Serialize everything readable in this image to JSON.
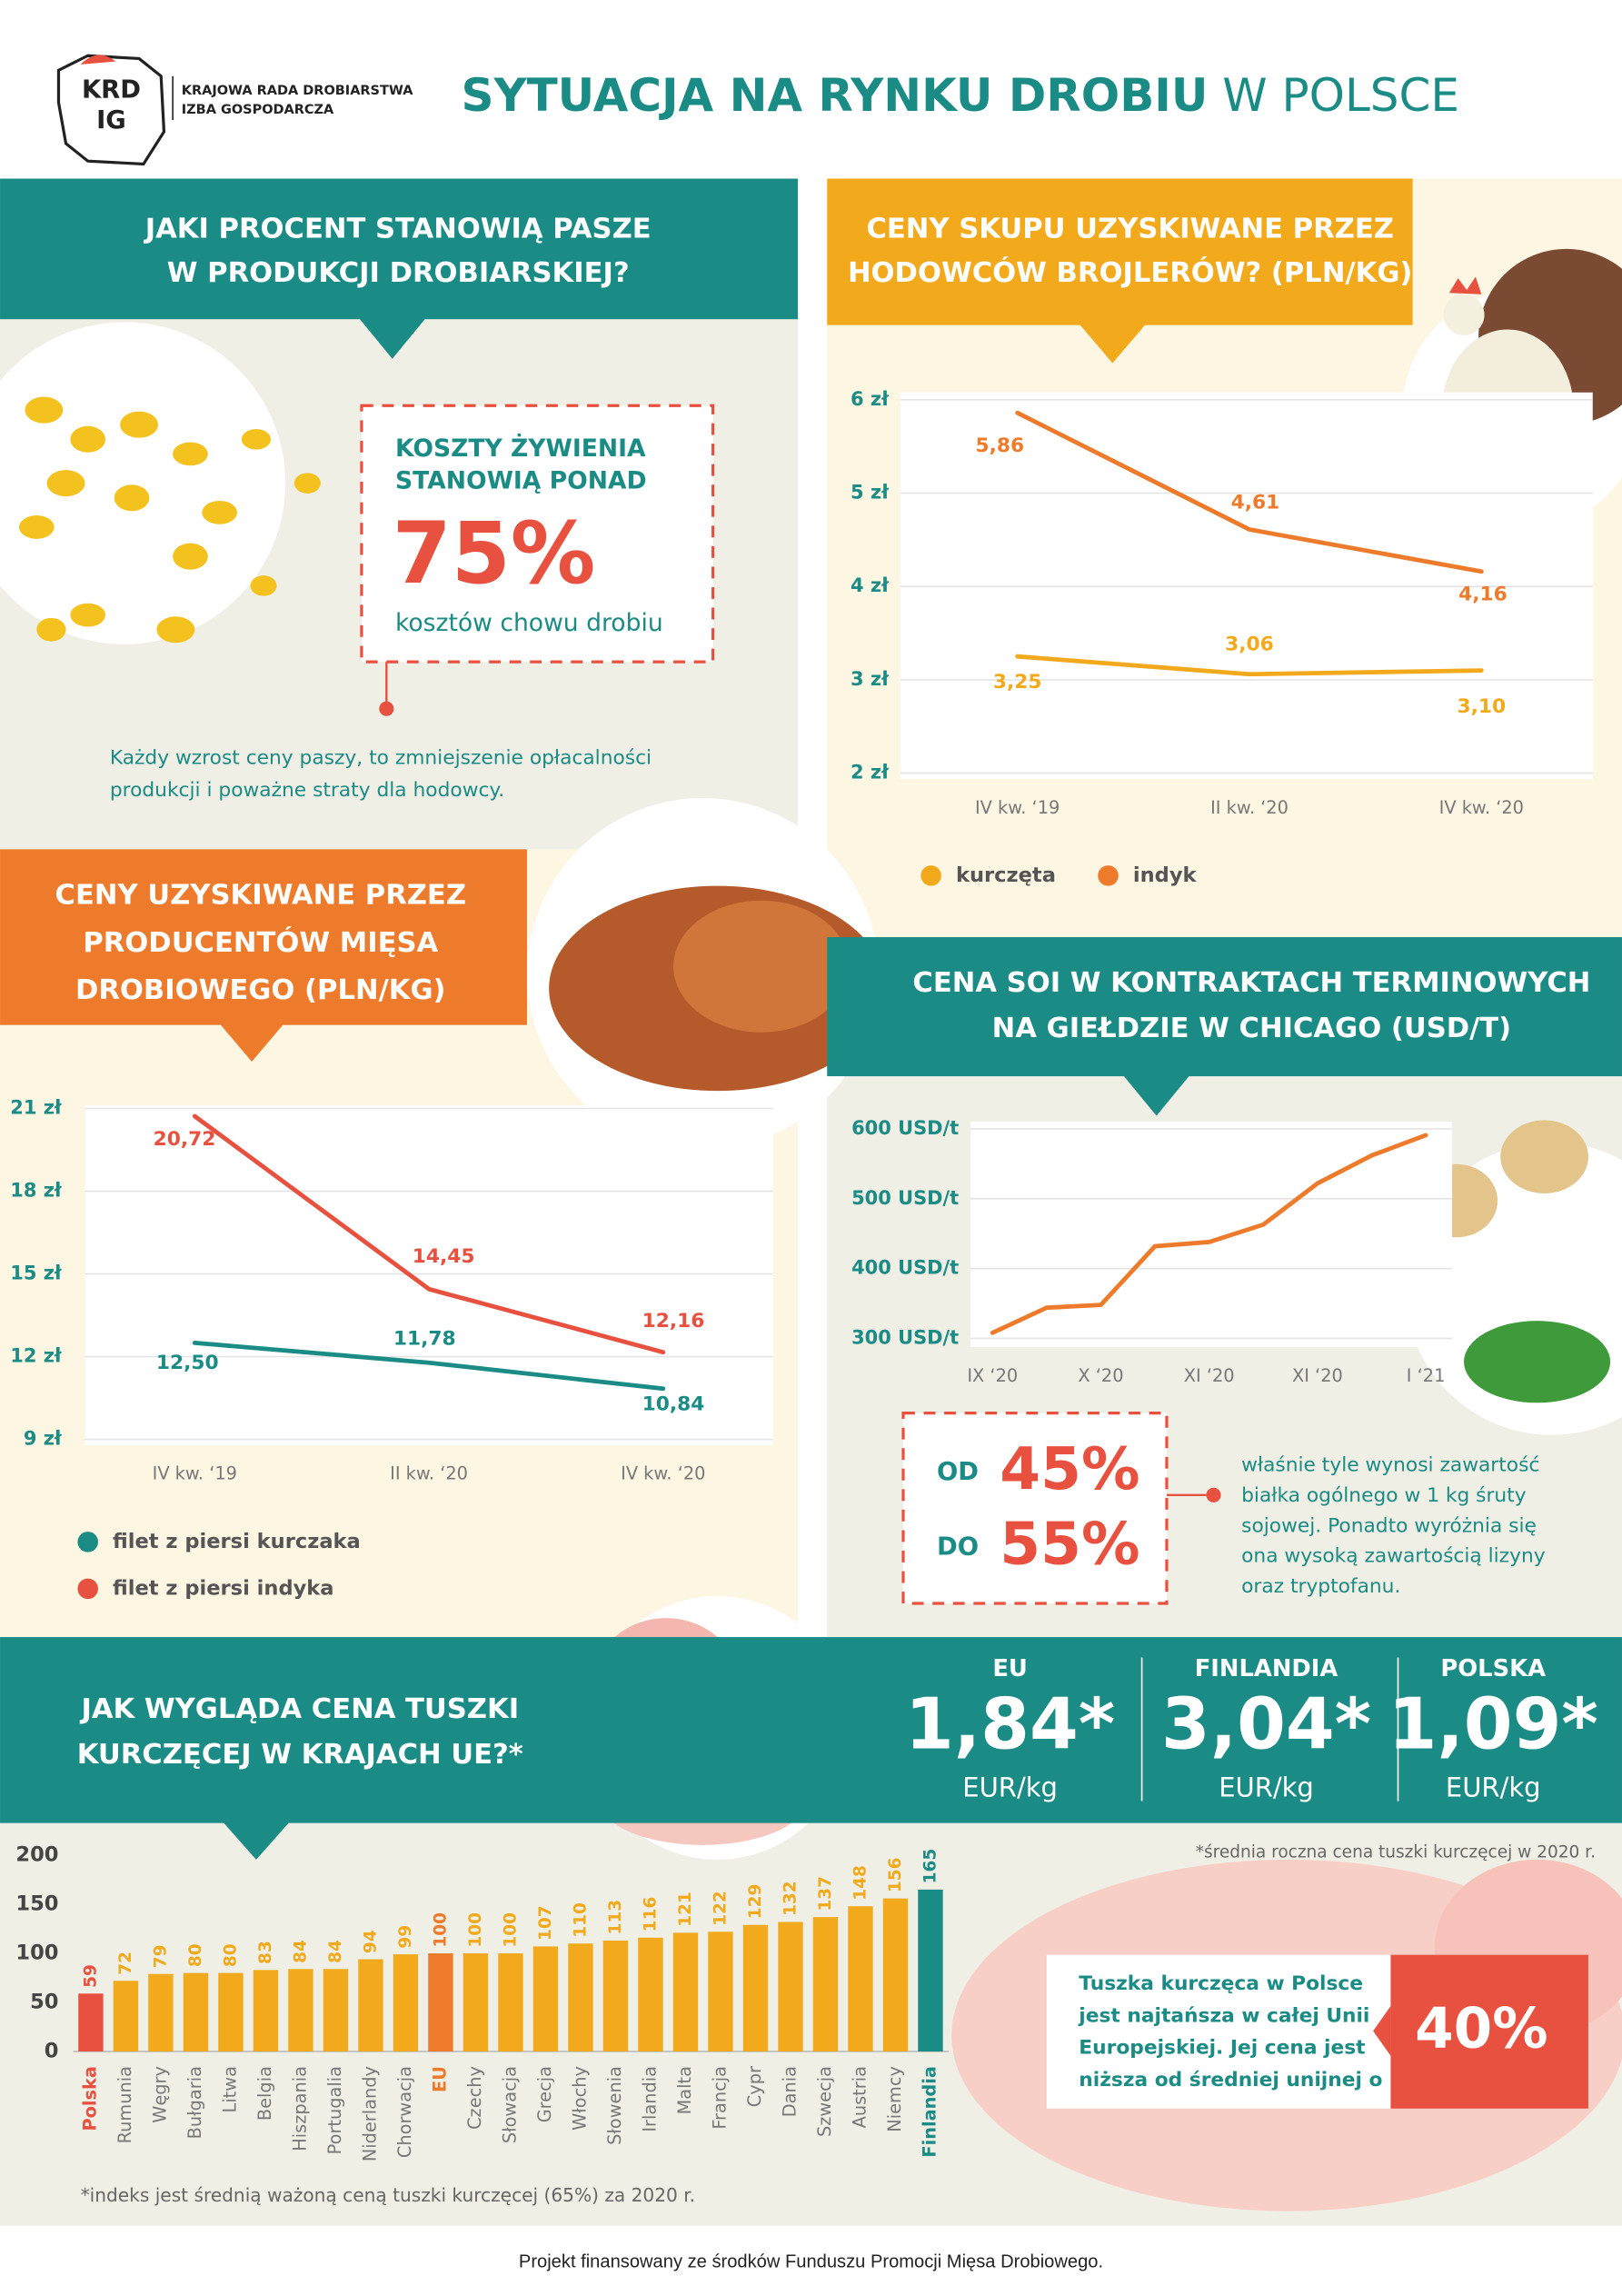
{
  "header": {
    "logo_top": "KRD",
    "logo_bottom": "IG",
    "org_line1": "KRAJOWA RADA DROBIARSTWA",
    "org_line2": "IZBA GOSPODARCZA",
    "title_bold": "SYTUACJA NA RYNKU DROBIU",
    "title_light": "W POLSCE"
  },
  "feed": {
    "heading": [
      "JAKI PROCENT STANOWIĄ PASZE",
      "W PRODUKCJI DROBIARSKIEJ?"
    ],
    "box_line1": "KOSZTY ŻYWIENIA",
    "box_line2": "STANOWIĄ PONAD",
    "box_value": "75%",
    "box_caption": "kosztów chowu drobiu",
    "note": [
      "Każdy wzrost ceny paszy, to zmniejszenie opłacalności",
      "produkcji i poważne straty dla hodowcy."
    ]
  },
  "soy_protein": {
    "from_label": "OD",
    "from_value": "45%",
    "to_label": "DO",
    "to_value": "55%",
    "note": [
      "właśnie tyle wynosi zawartość",
      "białka ogólnego w 1 kg śruty",
      "sojowej. Ponadto wyróżnia się",
      "ona wysoką zawartością lizyny",
      "oraz tryptofanu."
    ]
  },
  "prices": {
    "items": [
      {
        "name": "EU",
        "value": "1,84*",
        "unit": "EUR/kg"
      },
      {
        "name": "FINLANDIA",
        "value": "3,04*",
        "unit": "EUR/kg"
      },
      {
        "name": "POLSKA",
        "value": "1,09*",
        "unit": "EUR/kg"
      }
    ],
    "note": "*średnia roczna cena tuszki kurczęcej w 2020 r."
  },
  "poland_box": {
    "lines": [
      "Tuszka kurczęca w Polsce",
      "jest najtańsza w całej Unii",
      "Europejskiej. Jej cena jest",
      "niższa od średniej unijnej o"
    ],
    "value": "40%"
  },
  "footer": "Projekt finansowany ze środków Funduszu Promocji Mięsa Drobiowego.",
  "chart_data": [
    {
      "type": "line",
      "title": [
        "CENY SKUPU UZYSKIWANE PRZEZ",
        "HODOWCÓW BROJLERÓW? (PLN/KG)"
      ],
      "categories": [
        "IV kw. ‘19",
        "II kw. ‘20",
        "IV kw. ‘20"
      ],
      "series": [
        {
          "name": "kurczęta",
          "color": "#f2aa1c",
          "values": [
            3.25,
            3.06,
            3.1
          ],
          "value_labels": [
            "3,25",
            "3,06",
            "3,10"
          ]
        },
        {
          "name": "indyk",
          "color": "#ee7b2c",
          "values": [
            5.86,
            4.61,
            4.16
          ],
          "value_labels": [
            "5,86",
            "4,61",
            "4,16"
          ]
        }
      ],
      "ylim": [
        2,
        6
      ],
      "yticks": [
        {
          "value": 2,
          "label": "2 zł"
        },
        {
          "value": 3,
          "label": "3 zł"
        },
        {
          "value": 4,
          "label": "4 zł"
        },
        {
          "value": 5,
          "label": "5 zł"
        },
        {
          "value": 6,
          "label": "6 zł"
        }
      ],
      "grid": true,
      "legend": "bottom"
    },
    {
      "type": "line",
      "title": [
        "CENY UZYSKIWANE PRZEZ",
        "PRODUCENTÓW MIĘSA",
        "DROBIOWEGO (PLN/KG)"
      ],
      "categories": [
        "IV kw. ‘19",
        "II kw. ‘20",
        "IV kw. ‘20"
      ],
      "series": [
        {
          "name": "filet z piersi kurczaka",
          "color": "#1b8b85",
          "values": [
            12.5,
            11.78,
            10.84
          ],
          "value_labels": [
            "12,50",
            "11,78",
            "10,84"
          ]
        },
        {
          "name": "filet z piersi indyka",
          "color": "#e8513f",
          "values": [
            20.72,
            14.45,
            12.16
          ],
          "value_labels": [
            "20,72",
            "14,45",
            "12,16"
          ]
        }
      ],
      "ylim": [
        9,
        21
      ],
      "yticks": [
        {
          "value": 9,
          "label": "9 zł"
        },
        {
          "value": 12,
          "label": "12 zł"
        },
        {
          "value": 15,
          "label": "15 zł"
        },
        {
          "value": 18,
          "label": "18 zł"
        },
        {
          "value": 21,
          "label": "21 zł"
        }
      ],
      "grid": true,
      "legend": "bottom"
    },
    {
      "type": "line",
      "title": [
        "CENA SOI W KONTRAKTACH TERMINOWYCH",
        "NA GIEŁDZIE W CHICAGO (USD/T)"
      ],
      "categories": [
        "IX ‘20",
        null,
        "X ‘20",
        null,
        "XI ‘20",
        null,
        "XI ‘20",
        null,
        "I ‘21"
      ],
      "series": [
        {
          "name": null,
          "color": "#ee7b2c",
          "values": [
            308,
            344,
            348,
            432,
            438,
            463,
            522,
            562,
            591
          ]
        }
      ],
      "ylim": [
        290,
        610
      ],
      "yticks": [
        {
          "value": 300,
          "label": "300 USD/t"
        },
        {
          "value": 400,
          "label": "400 USD/t"
        },
        {
          "value": 500,
          "label": "500 USD/t"
        },
        {
          "value": 600,
          "label": "600 USD/t"
        }
      ],
      "grid": true
    },
    {
      "type": "bar",
      "title": [
        "JAK WYGLĄDA CENA TUSZKI",
        "KURCZĘCEJ W KRAJACH UE?*"
      ],
      "categories": [
        "Polska",
        "Rumunia",
        "Węgry",
        "Bułgaria",
        "Litwa",
        "Belgia",
        "Hiszpania",
        "Portugalia",
        "Niderlandy",
        "Chorwacja",
        "EU",
        "Czechy",
        "Słowacja",
        "Grecja",
        "Włochy",
        "Słowenia",
        "Irlandia",
        "Malta",
        "Francja",
        "Cypr",
        "Dania",
        "Szwecja",
        "Austria",
        "Niemcy",
        "Finlandia"
      ],
      "values": [
        59,
        72,
        79,
        80,
        80,
        83,
        84,
        84,
        94,
        99,
        100,
        100,
        100,
        107,
        110,
        113,
        116,
        121,
        122,
        129,
        132,
        137,
        148,
        156,
        165
      ],
      "color": "#f2aa1c",
      "colors": [
        "#e8513f",
        "#f2aa1c",
        "#f2aa1c",
        "#f2aa1c",
        "#f2aa1c",
        "#f2aa1c",
        "#f2aa1c",
        "#f2aa1c",
        "#f2aa1c",
        "#f2aa1c",
        "#ee7b2c",
        "#f2aa1c",
        "#f2aa1c",
        "#f2aa1c",
        "#f2aa1c",
        "#f2aa1c",
        "#f2aa1c",
        "#f2aa1c",
        "#f2aa1c",
        "#f2aa1c",
        "#f2aa1c",
        "#f2aa1c",
        "#f2aa1c",
        "#f2aa1c",
        "#1b8b85"
      ],
      "ylim": [
        0,
        200
      ],
      "yticks": [
        0,
        50,
        100,
        150,
        200
      ],
      "note": "*indeks jest średnią ważoną ceną tuszki kurczęcej (65%) za 2020 r."
    }
  ]
}
